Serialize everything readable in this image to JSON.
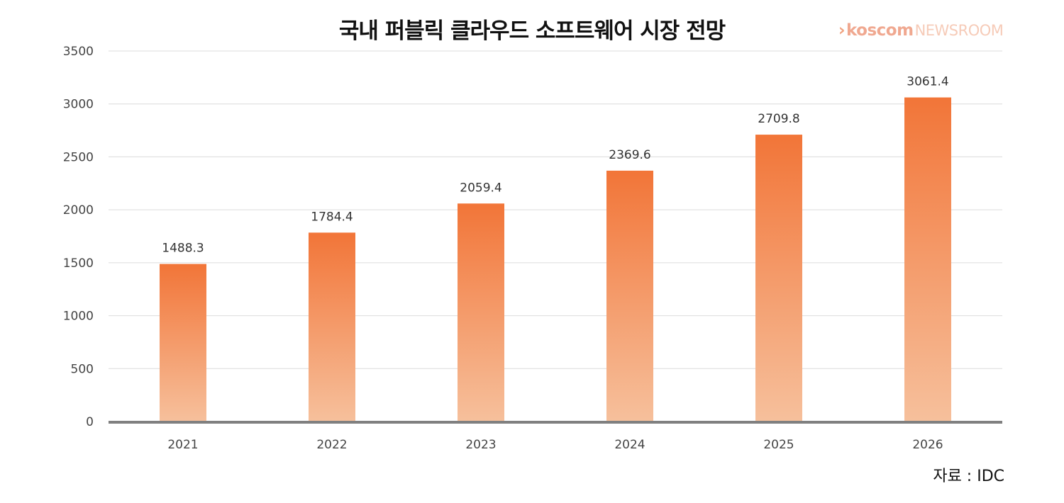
{
  "title": "국내 퍼블릭 클라우드 소프트웨어 시장 전망",
  "brand": {
    "arrow": "›",
    "name": "koscom",
    "sub": "NEWSROOM"
  },
  "source": "자료 : IDC",
  "colors": {
    "bar_top": "#f27538",
    "bar_bottom": "#f6c09c",
    "grid": "#dcdcdc",
    "baseline": "#808080"
  },
  "chart_data": {
    "type": "bar",
    "title": "국내 퍼블릭 클라우드 소프트웨어 시장 전망",
    "xlabel": "",
    "ylabel": "",
    "categories": [
      "2021",
      "2022",
      "2023",
      "2024",
      "2025",
      "2026"
    ],
    "values": [
      1488.3,
      1784.4,
      2059.4,
      2369.6,
      2709.8,
      3061.4
    ],
    "value_labels": [
      "1488.3",
      "1784.4",
      "2059.4",
      "2369.6",
      "2709.8",
      "3061.4"
    ],
    "ylim": [
      0,
      3500
    ],
    "yticks": [
      0,
      500,
      1000,
      1500,
      2000,
      2500,
      3000,
      3500
    ],
    "grid": true,
    "legend": "none"
  }
}
